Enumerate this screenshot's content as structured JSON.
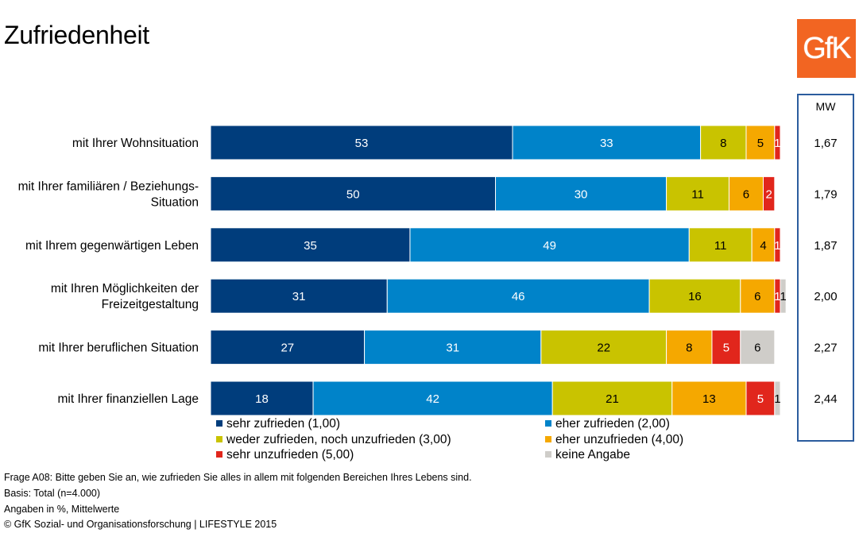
{
  "page": {
    "title": "Zufriedenheit",
    "logo_text": "GfK",
    "brand_color": "#f26522"
  },
  "chart_data": {
    "type": "bar",
    "orientation": "horizontal",
    "stacked": true,
    "categories": [
      [
        "mit Ihrer Wohnsituation"
      ],
      [
        "mit Ihrer familiären / Beziehungs-",
        "Situation"
      ],
      [
        "mit Ihrem gegenwärtigen Leben"
      ],
      [
        "mit Ihren Möglichkeiten der",
        "Freizeitgestaltung"
      ],
      [
        "mit Ihrer beruflichen Situation"
      ],
      [
        "mit Ihrer finanziellen Lage"
      ]
    ],
    "series": [
      {
        "name": "sehr zufrieden (1,00)",
        "color": "#003d7c",
        "text_color": "#ffffff",
        "values": [
          53,
          50,
          35,
          31,
          27,
          18
        ]
      },
      {
        "name": "eher zufrieden (2,00)",
        "color": "#0083c9",
        "text_color": "#ffffff",
        "values": [
          33,
          30,
          49,
          46,
          31,
          42
        ]
      },
      {
        "name": "weder zufrieden, noch unzufrieden (3,00)",
        "color": "#c9c300",
        "text_color": "#000000",
        "values": [
          8,
          11,
          11,
          16,
          22,
          21
        ]
      },
      {
        "name": "eher unzufrieden (4,00)",
        "color": "#f5a800",
        "text_color": "#000000",
        "values": [
          5,
          6,
          4,
          6,
          8,
          13
        ]
      },
      {
        "name": "sehr unzufrieden (5,00)",
        "color": "#e1261c",
        "text_color": "#ffffff",
        "values": [
          1,
          2,
          1,
          1,
          5,
          5
        ]
      },
      {
        "name": "keine Angabe",
        "color": "#cfcdc9",
        "text_color": "#000000",
        "values": [
          0,
          0,
          0,
          1,
          6,
          1
        ]
      }
    ],
    "xlim": [
      0,
      100
    ],
    "unit": "%",
    "mean_header": "MW",
    "means": [
      "1,67",
      "1,79",
      "1,87",
      "2,00",
      "2,27",
      "2,44"
    ],
    "legend_position": "bottom"
  },
  "notes": [
    "Frage A08: Bitte geben Sie an, wie zufrieden Sie alles in allem mit folgenden Bereichen Ihres Lebens sind.",
    "Basis: Total (n=4.000)",
    "Angaben in %, Mittelwerte",
    "© GfK Sozial- und Organisationsforschung | LIFESTYLE 2015"
  ]
}
